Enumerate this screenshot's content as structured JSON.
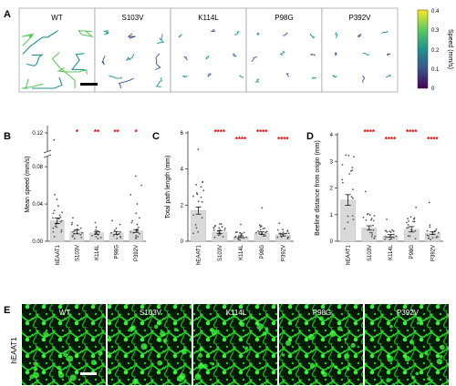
{
  "panel_letters": {
    "a": "A",
    "b": "B",
    "c": "C",
    "d": "D",
    "e": "E"
  },
  "genotypes": [
    "WT",
    "S103V",
    "K114L",
    "P98G",
    "P392V"
  ],
  "colorbar": {
    "label": "Speed (mm/s)",
    "ticks": [
      "0.4",
      "0.3",
      "0.2",
      "0.1",
      "0"
    ],
    "colors": [
      "#fde725",
      "#5ec962",
      "#21918c",
      "#3b528b",
      "#440154"
    ]
  },
  "panel_e_label": "hEAAT1",
  "chart_data": [
    {
      "type": "bar",
      "panel": "B",
      "categories": [
        "hEAAT1",
        "S103V",
        "K114L",
        "P98G",
        "P392V"
      ],
      "values": [
        0.022,
        0.01,
        0.009,
        0.009,
        0.011
      ],
      "errors": [
        0.003,
        0.002,
        0.0015,
        0.0015,
        0.0015
      ],
      "significance": [
        "",
        "*",
        "**",
        "**",
        "*"
      ],
      "ylabel": "Mean speed (mm/s)",
      "yticks_lower": [
        "0.00",
        "0.04",
        "0.08"
      ],
      "yticks_upper": [
        "0.12"
      ],
      "ylim": [
        0,
        0.12
      ],
      "axis_break": true,
      "points": [
        [
          0.005,
          0.01,
          0.012,
          0.015,
          0.018,
          0.02,
          0.021,
          0.022,
          0.025,
          0.028,
          0.03,
          0.033,
          0.038,
          0.045,
          0.05,
          0.01,
          0.016,
          0.024,
          0.031,
          0.014,
          0.026,
          0.105
        ],
        [
          0.003,
          0.005,
          0.006,
          0.008,
          0.009,
          0.01,
          0.012,
          0.014,
          0.017,
          0.02,
          0.025,
          0.004,
          0.007,
          0.011,
          0.013,
          0.018
        ],
        [
          0.003,
          0.004,
          0.006,
          0.007,
          0.008,
          0.009,
          0.01,
          0.012,
          0.015,
          0.02,
          0.005,
          0.011
        ],
        [
          0.004,
          0.005,
          0.006,
          0.008,
          0.009,
          0.01,
          0.012,
          0.014,
          0.018,
          0.022,
          0.003,
          0.007
        ],
        [
          0.003,
          0.005,
          0.006,
          0.008,
          0.009,
          0.01,
          0.012,
          0.015,
          0.018,
          0.022,
          0.03,
          0.04,
          0.05,
          0.06,
          0.07,
          0.004,
          0.011,
          0.013,
          0.02,
          0.025
        ]
      ]
    },
    {
      "type": "bar",
      "panel": "C",
      "categories": [
        "hEAAT1",
        "S103V",
        "K114L",
        "P98G",
        "P392V"
      ],
      "values": [
        1.7,
        0.5,
        0.25,
        0.45,
        0.35
      ],
      "errors": [
        0.2,
        0.08,
        0.05,
        0.07,
        0.06
      ],
      "significance": [
        "",
        "****",
        "****",
        "****",
        "****"
      ],
      "ylabel": "Total path length (mm)",
      "yticks": [
        "0",
        "2",
        "4",
        "6"
      ],
      "ylim": [
        0,
        6
      ]
    },
    {
      "type": "bar",
      "panel": "D",
      "categories": [
        "hEAAT1",
        "S103V",
        "K114L",
        "P98G",
        "P392V"
      ],
      "values": [
        1.55,
        0.5,
        0.2,
        0.45,
        0.3
      ],
      "errors": [
        0.2,
        0.08,
        0.05,
        0.1,
        0.05
      ],
      "significance": [
        "",
        "****",
        "****",
        "****",
        "****"
      ],
      "ylabel": "Beeline distance from origin (mm)",
      "yticks": [
        "0",
        "1",
        "2",
        "3",
        "4"
      ],
      "ylim": [
        0,
        4
      ]
    }
  ]
}
